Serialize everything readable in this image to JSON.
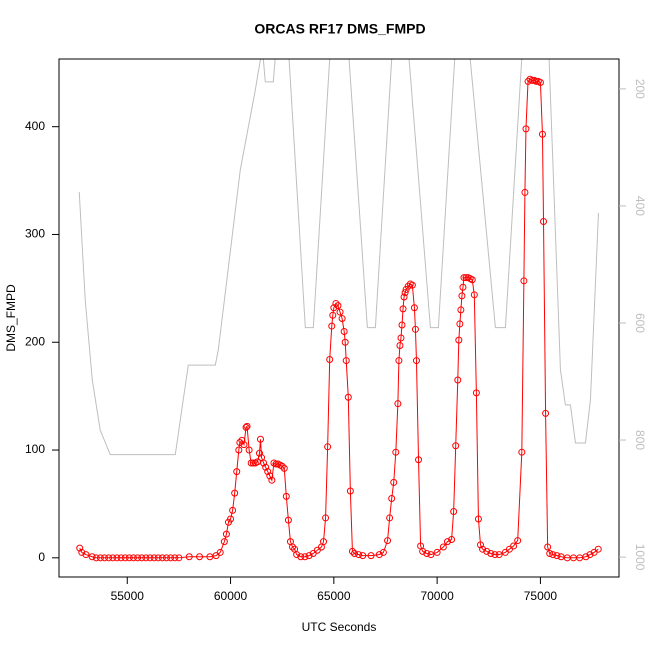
{
  "chart_data": {
    "type": "line",
    "title": "ORCAS RF17 DMS_FMPD",
    "x_label": "UTC Seconds",
    "y_label": "DMS_FMPD",
    "xlim": [
      51696,
      78804
    ],
    "xticks": [
      55000,
      60000,
      65000,
      70000,
      75000
    ],
    "ylim": [
      -17.8,
      462.8
    ],
    "yticks": [
      0,
      100,
      200,
      300,
      400
    ],
    "y2lim": [
      1034,
      149
    ],
    "y2ticks": [
      200,
      400,
      600,
      800,
      1000
    ],
    "series": [
      {
        "color": "#ff0000",
        "markers": true,
        "x": [
          52700,
          52800,
          53000,
          53300,
          53500,
          53700,
          53900,
          54100,
          54300,
          54500,
          54700,
          54900,
          55100,
          55300,
          55500,
          55700,
          55900,
          56100,
          56300,
          56500,
          56700,
          56900,
          57100,
          57300,
          57500,
          58000,
          58500,
          59000,
          59300,
          59500,
          59700,
          59800,
          59900,
          60000,
          60100,
          60200,
          60300,
          60400,
          60450,
          60550,
          60650,
          60750,
          60800,
          60900,
          61000,
          61100,
          61200,
          61300,
          61400,
          61450,
          61500,
          61600,
          61700,
          61800,
          61900,
          62000,
          62100,
          62200,
          62300,
          62400,
          62500,
          62600,
          62700,
          62800,
          62900,
          63000,
          63100,
          63200,
          63400,
          63600,
          63800,
          64000,
          64200,
          64400,
          64500,
          64600,
          64700,
          64800,
          64900,
          64950,
          65000,
          65100,
          65200,
          65300,
          65400,
          65500,
          65550,
          65600,
          65700,
          65800,
          65900,
          66000,
          66200,
          66400,
          66800,
          67200,
          67400,
          67600,
          67700,
          67800,
          67900,
          68000,
          68100,
          68150,
          68200,
          68250,
          68300,
          68350,
          68400,
          68450,
          68500,
          68600,
          68700,
          68800,
          68900,
          68950,
          69000,
          69100,
          69200,
          69300,
          69500,
          69700,
          70000,
          70300,
          70500,
          70700,
          70800,
          70900,
          71000,
          71050,
          71100,
          71150,
          71200,
          71250,
          71300,
          71400,
          71500,
          71600,
          71700,
          71800,
          71900,
          72000,
          72100,
          72200,
          72400,
          72600,
          72800,
          73000,
          73300,
          73500,
          73700,
          73900,
          74100,
          74200,
          74250,
          74300,
          74400,
          74500,
          74600,
          74700,
          74800,
          74900,
          75000,
          75100,
          75150,
          75250,
          75350,
          75450,
          75600,
          75800,
          76000,
          76300,
          76600,
          76900,
          77200,
          77400,
          77600,
          77800
        ],
        "values": [
          9,
          5,
          3,
          1,
          0,
          0,
          0,
          0,
          0,
          0,
          0,
          0,
          0,
          0,
          0,
          0,
          0,
          0,
          0,
          0,
          0,
          0,
          0,
          0,
          0,
          1,
          1,
          1,
          2,
          5,
          15,
          22,
          33,
          36,
          44,
          60,
          80,
          100,
          107,
          109,
          105,
          121,
          122,
          100,
          88,
          88,
          88,
          89,
          97,
          110,
          93,
          88,
          84,
          80,
          76,
          72,
          88,
          87,
          87,
          86,
          85,
          83,
          57,
          35,
          15,
          10,
          8,
          3,
          1,
          1,
          2,
          4,
          7,
          10,
          15,
          37,
          103,
          184,
          215,
          225,
          232,
          236,
          234,
          228,
          222,
          210,
          200,
          183,
          149,
          62,
          6,
          4,
          3,
          2,
          2,
          3,
          5,
          16,
          37,
          55,
          70,
          98,
          143,
          183,
          197,
          204,
          216,
          231,
          242,
          246,
          249,
          252,
          254,
          253,
          232,
          212,
          183,
          91,
          11,
          6,
          4,
          3,
          5,
          10,
          15,
          17,
          43,
          104,
          165,
          202,
          217,
          230,
          243,
          251,
          260,
          260,
          260,
          259,
          258,
          244,
          153,
          36,
          12,
          8,
          6,
          4,
          3,
          3,
          5,
          8,
          11,
          16,
          98,
          257,
          339,
          398,
          442,
          444,
          443,
          443,
          442,
          442,
          441,
          393,
          312,
          134,
          10,
          4,
          3,
          2,
          1,
          0,
          0,
          0,
          1,
          3,
          5,
          8
        ]
      },
      {
        "color": "#bebebe",
        "axis": "y2",
        "x": [
          52675,
          52966,
          53305,
          53692,
          54177,
          57325,
          57954,
          59262,
          59407,
          60473,
          61199,
          61538,
          61683,
          62071,
          62200,
          62800,
          63620,
          64008,
          64831,
          65700,
          66623,
          67011,
          67834,
          68600,
          69674,
          70061,
          70884,
          71550,
          72821,
          73306,
          74129,
          75400,
          75969,
          76211,
          76453,
          76696,
          77180,
          77422,
          77810
        ],
        "values": [
          376,
          561,
          697,
          783,
          825,
          825,
          672,
          672,
          646,
          338,
          202,
          130,
          188,
          188,
          130,
          130,
          608,
          608,
          130,
          130,
          608,
          608,
          130,
          130,
          608,
          608,
          130,
          130,
          608,
          608,
          130,
          130,
          680,
          740,
          740,
          805,
          805,
          731,
          412
        ]
      }
    ]
  }
}
